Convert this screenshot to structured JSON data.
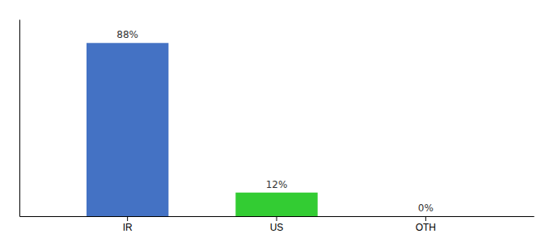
{
  "chart_data": {
    "type": "bar",
    "categories": [
      "IR",
      "US",
      "OTH"
    ],
    "values": [
      88,
      12,
      0
    ],
    "value_labels": [
      "88%",
      "12%",
      "0%"
    ],
    "colors": [
      "#4472c4",
      "#33cc33",
      "#4472c4"
    ],
    "ylim": [
      0,
      100
    ],
    "data_labels": true,
    "tick_labels": "x"
  }
}
